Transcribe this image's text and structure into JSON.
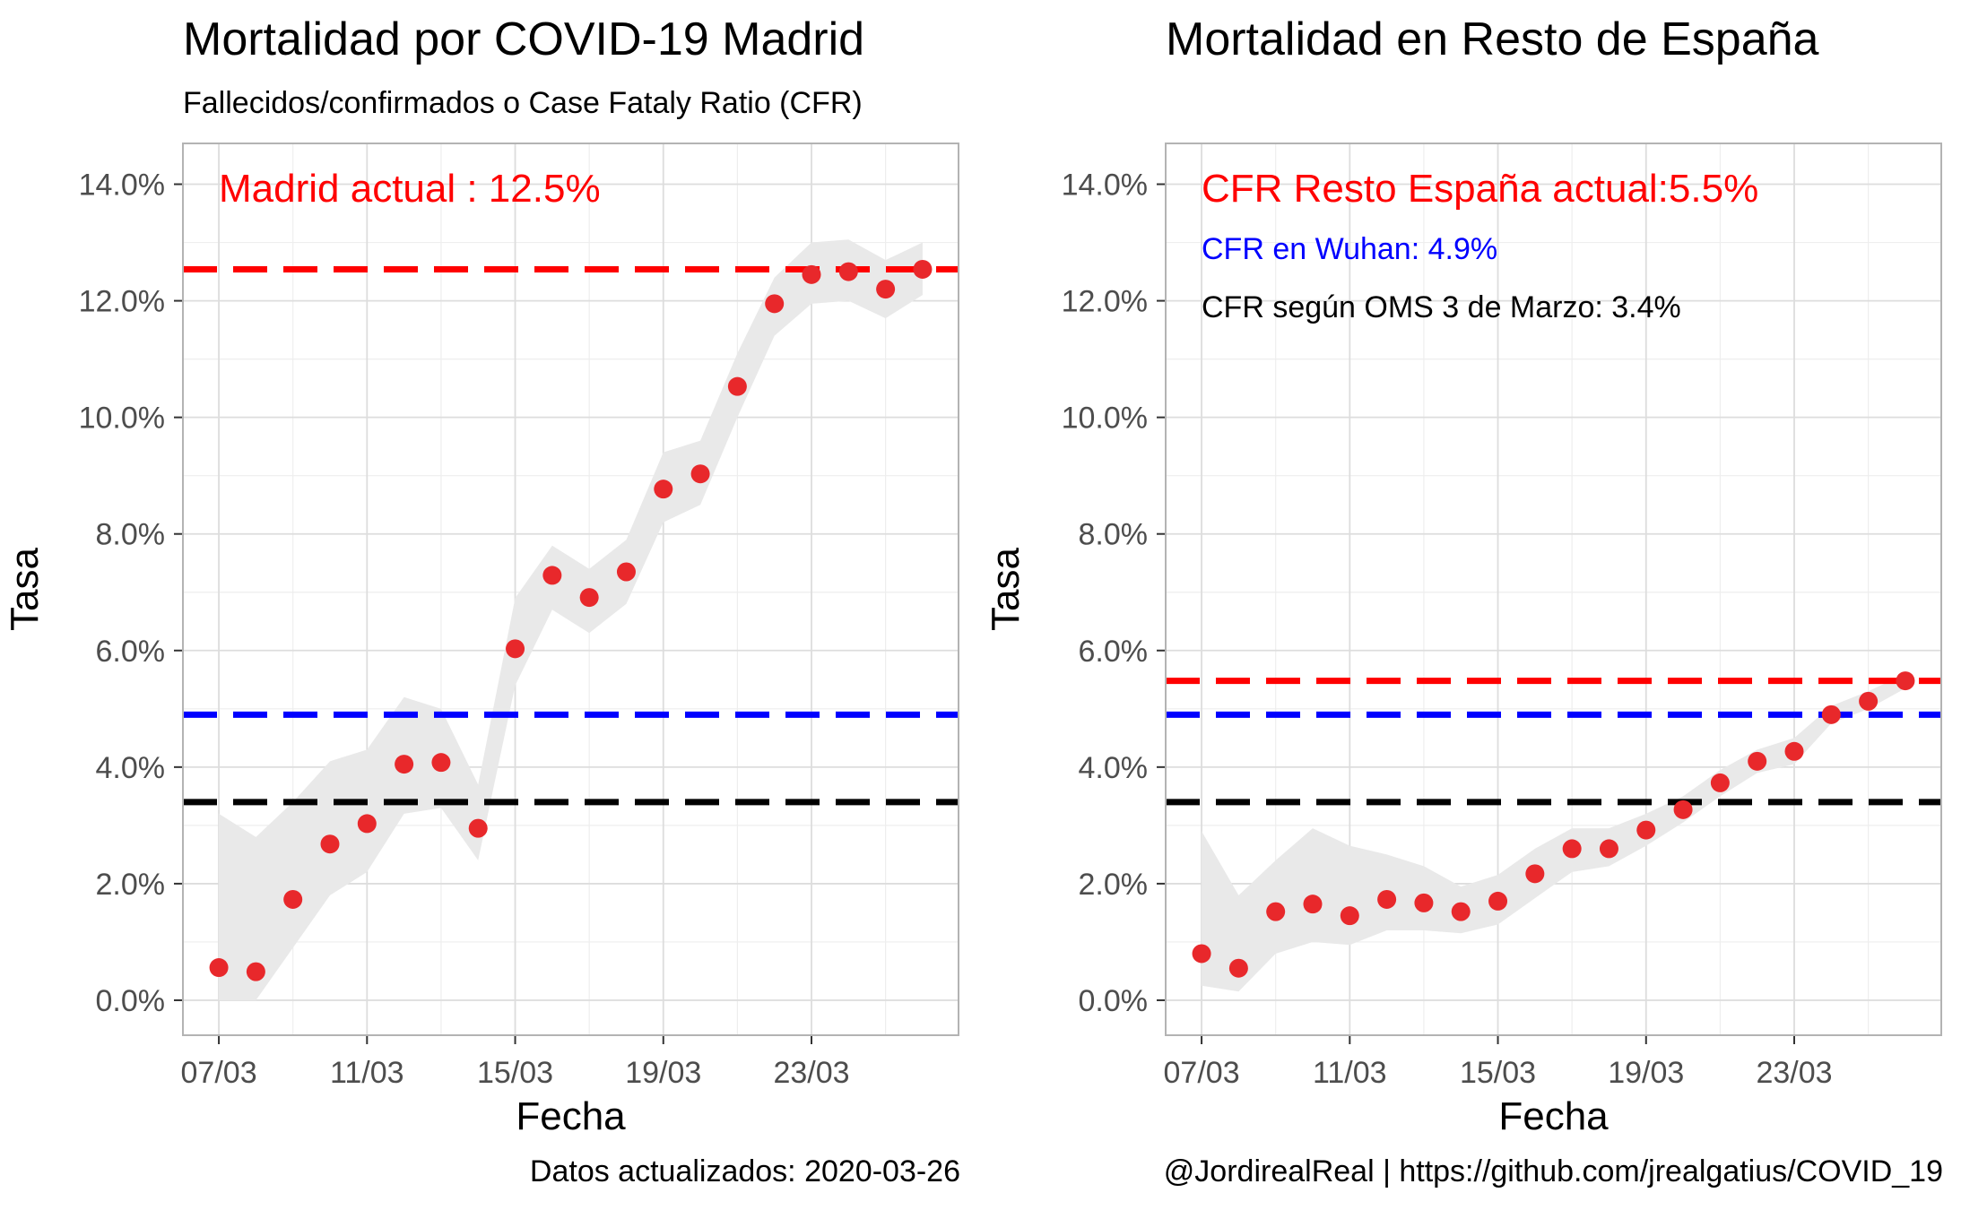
{
  "chart_data": [
    {
      "type": "scatter",
      "title": "Mortalidad por COVID-19 Madrid",
      "subtitle": "Fallecidos/confirmados o Case Fataly Ratio (CFR)",
      "xlabel": "Fecha",
      "ylabel": "Tasa",
      "x_ticks": [
        "07/03",
        "11/03",
        "15/03",
        "19/03",
        "23/03"
      ],
      "y_ticks": [
        "0.0%",
        "2.0%",
        "4.0%",
        "6.0%",
        "8.0%",
        "10.0%",
        "12.0%",
        "14.0%"
      ],
      "ylim": [
        -0.6,
        14.7
      ],
      "xlim": [
        "06/03",
        "26/03"
      ],
      "grid": true,
      "points": {
        "x": [
          "07/03",
          "08/03",
          "09/03",
          "10/03",
          "11/03",
          "12/03",
          "13/03",
          "14/03",
          "15/03",
          "16/03",
          "17/03",
          "18/03",
          "19/03",
          "20/03",
          "21/03",
          "22/03",
          "23/03",
          "24/03",
          "25/03",
          "26/03"
        ],
        "y": [
          0.56,
          0.49,
          1.73,
          2.68,
          3.03,
          4.05,
          4.08,
          2.95,
          6.03,
          7.29,
          6.91,
          7.35,
          8.77,
          9.03,
          10.53,
          11.95,
          12.45,
          12.5,
          12.2,
          12.54
        ],
        "ci_low": [
          0.0,
          0.0,
          0.9,
          1.8,
          2.2,
          3.2,
          3.3,
          2.4,
          5.4,
          6.7,
          6.3,
          6.8,
          8.2,
          8.5,
          10.0,
          11.4,
          11.95,
          12.0,
          11.7,
          12.1
        ],
        "ci_high": [
          3.2,
          2.8,
          3.4,
          4.1,
          4.3,
          5.2,
          5.0,
          3.7,
          6.9,
          7.8,
          7.4,
          7.9,
          9.4,
          9.6,
          11.1,
          12.4,
          13.0,
          13.05,
          12.7,
          13.0
        ]
      },
      "hlines": [
        {
          "value": 12.54,
          "color": "#ff0000"
        },
        {
          "value": 4.9,
          "color": "#0000ff"
        },
        {
          "value": 3.4,
          "color": "#000000"
        }
      ],
      "annotations": [
        {
          "text": "Madrid actual : 12.5%",
          "color": "#ff0000"
        }
      ],
      "footer": "Datos actualizados: 2020-03-26"
    },
    {
      "type": "scatter",
      "title": "Mortalidad en Resto de España",
      "subtitle": "",
      "xlabel": "Fecha",
      "ylabel": "Tasa",
      "x_ticks": [
        "07/03",
        "11/03",
        "15/03",
        "19/03",
        "23/03"
      ],
      "y_ticks": [
        "0.0%",
        "2.0%",
        "4.0%",
        "6.0%",
        "8.0%",
        "10.0%",
        "12.0%",
        "14.0%"
      ],
      "ylim": [
        -0.6,
        14.7
      ],
      "xlim": [
        "06/03",
        "26/03"
      ],
      "grid": true,
      "points": {
        "x": [
          "07/03",
          "08/03",
          "09/03",
          "10/03",
          "11/03",
          "12/03",
          "13/03",
          "14/03",
          "15/03",
          "16/03",
          "17/03",
          "18/03",
          "19/03",
          "20/03",
          "21/03",
          "22/03",
          "23/03",
          "24/03",
          "25/03",
          "26/03"
        ],
        "y": [
          0.8,
          0.55,
          1.52,
          1.65,
          1.45,
          1.73,
          1.67,
          1.52,
          1.7,
          2.17,
          2.6,
          2.6,
          2.92,
          3.27,
          3.73,
          4.1,
          4.27,
          4.9,
          5.13,
          5.48
        ],
        "ci_low": [
          0.25,
          0.15,
          0.8,
          1.0,
          0.95,
          1.2,
          1.2,
          1.15,
          1.3,
          1.75,
          2.2,
          2.3,
          2.65,
          3.05,
          3.5,
          3.9,
          4.05,
          4.75,
          5.0,
          5.35
        ],
        "ci_high": [
          2.9,
          1.8,
          2.4,
          2.95,
          2.65,
          2.5,
          2.3,
          1.95,
          2.15,
          2.6,
          2.95,
          2.95,
          3.2,
          3.5,
          3.95,
          4.3,
          4.5,
          5.05,
          5.3,
          5.6
        ]
      },
      "hlines": [
        {
          "value": 5.48,
          "color": "#ff0000"
        },
        {
          "value": 4.9,
          "color": "#0000ff"
        },
        {
          "value": 3.4,
          "color": "#000000"
        }
      ],
      "annotations": [
        {
          "text": "CFR Resto España actual:5.5%",
          "color": "#ff0000"
        },
        {
          "text": "CFR en Wuhan: 4.9%",
          "color": "#0000ff"
        },
        {
          "text": "CFR según OMS 3 de Marzo: 3.4%",
          "color": "#000000"
        }
      ],
      "footer": "@JordirealReal | https://github.com/jrealgatius/COVID_19"
    }
  ],
  "colors": {
    "point": "#e8282b",
    "ribbon": "#e9e9e9",
    "grid_major": "#dddddd",
    "grid_minor": "#eeeeee",
    "border": "#b3b3b3",
    "tick_text": "#4d4d4d"
  }
}
